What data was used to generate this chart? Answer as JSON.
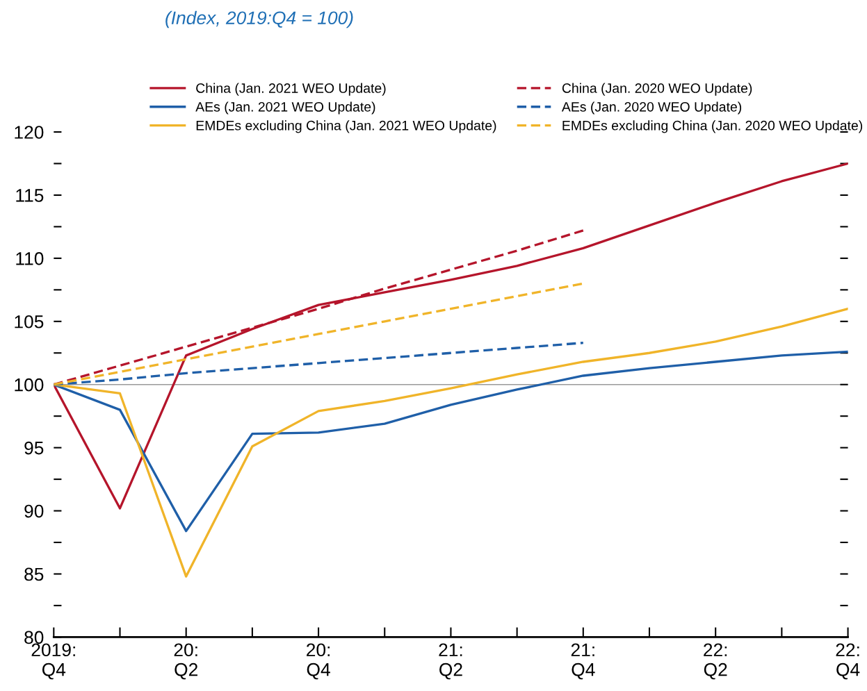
{
  "chart_data": {
    "type": "line",
    "subtitle": "(Index, 2019:Q4 = 100)",
    "categories": [
      "2019:\nQ4",
      null,
      "20:\nQ2",
      null,
      "20:\nQ4",
      null,
      "21:\nQ2",
      null,
      "21:\nQ4",
      null,
      "22:\nQ2",
      null,
      "22:\nQ4"
    ],
    "series": [
      {
        "name": "China (Jan. 2021 WEO Update)",
        "color": "#b5152b",
        "line_style": "solid",
        "values": [
          100,
          90.2,
          102.3,
          104.4,
          106.3,
          107.3,
          108.3,
          109.4,
          110.8,
          112.6,
          114.4,
          116.1,
          117.5
        ]
      },
      {
        "name": "AEs (Jan. 2021 WEO Update)",
        "color": "#1f5fa8",
        "line_style": "solid",
        "values": [
          100,
          98.0,
          88.4,
          96.1,
          96.2,
          96.9,
          98.4,
          99.6,
          100.7,
          101.3,
          101.8,
          102.3,
          102.6
        ]
      },
      {
        "name": "EMDEs excluding China (Jan. 2021 WEO Update)",
        "color": "#f0b429",
        "line_style": "solid",
        "values": [
          100,
          99.3,
          84.8,
          95.1,
          97.9,
          98.7,
          99.7,
          100.8,
          101.8,
          102.5,
          103.4,
          104.6,
          106.0
        ]
      },
      {
        "name": "China (Jan. 2020 WEO Update)",
        "color": "#b5152b",
        "line_style": "dashed",
        "values": [
          100,
          101.5,
          103.0,
          104.5,
          106.0,
          107.6,
          109.1,
          110.6,
          112.2,
          null,
          null,
          null,
          null
        ]
      },
      {
        "name": "AEs (Jan. 2020 WEO Update)",
        "color": "#1f5fa8",
        "line_style": "dashed",
        "values": [
          100,
          100.4,
          100.9,
          101.3,
          101.7,
          102.1,
          102.5,
          102.9,
          103.3,
          null,
          null,
          null,
          null
        ]
      },
      {
        "name": "EMDEs excluding China (Jan. 2020 WEO Update)",
        "color": "#f0b429",
        "line_style": "dashed",
        "values": [
          100,
          101.0,
          102.0,
          103.0,
          104.0,
          105.0,
          106.0,
          107.0,
          108.0,
          null,
          null,
          null,
          null
        ]
      }
    ],
    "ylim": [
      80,
      120
    ],
    "yticks": [
      80,
      {
        "value": 82.5,
        "label": null
      },
      85,
      {
        "value": 87.5,
        "label": null
      },
      90,
      {
        "value": 92.5,
        "label": null
      },
      95,
      {
        "value": 97.5,
        "label": null
      },
      100,
      {
        "value": 102.5,
        "label": null
      },
      105,
      {
        "value": 107.5,
        "label": null
      },
      110,
      {
        "value": 112.5,
        "label": null
      },
      115,
      {
        "value": 117.5,
        "label": null
      },
      120
    ],
    "ref_lines": [
      {
        "axis": "y",
        "value": 100,
        "color": "#999999"
      }
    ],
    "legend": "top",
    "grid": false,
    "marker": "none"
  }
}
